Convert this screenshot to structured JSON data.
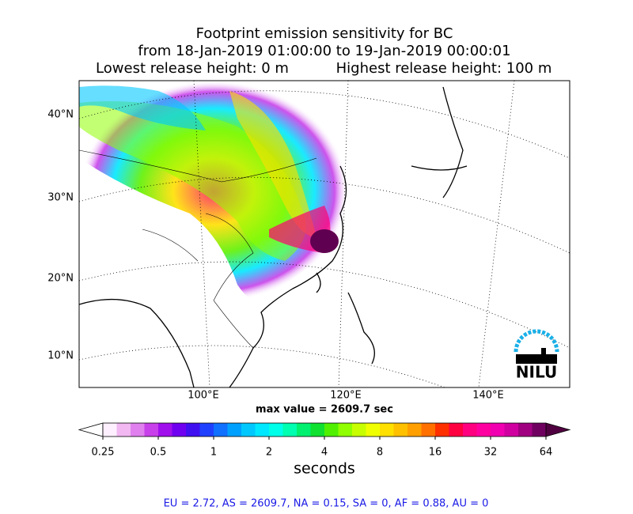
{
  "title": [
    "Footprint emission sensitivity for BC",
    "from 18-Jan-2019 01:00:00 to 19-Jan-2019 00:00:01"
  ],
  "release": {
    "lowest": "Lowest release height: 0 m",
    "highest": "Highest release height: 100 m"
  },
  "map": {
    "lat_labels": [
      "40°N",
      "30°N",
      "20°N",
      "10°N"
    ],
    "lon_labels": [
      "100°E",
      "120°E",
      "140°E"
    ],
    "max_value": "max value = 2609.7 sec",
    "logo": "NILU"
  },
  "colorbar": {
    "ticks": [
      0.25,
      0.5,
      1,
      2,
      4,
      8,
      16,
      32,
      64
    ],
    "log_scale": true,
    "label": "seconds",
    "colors": [
      "#fff0ff",
      "#f2b8f2",
      "#e080ee",
      "#c840ea",
      "#a010ec",
      "#7000f0",
      "#4010f0",
      "#2040ff",
      "#1070ff",
      "#00a0ff",
      "#00c8ff",
      "#00e8ff",
      "#00ffe8",
      "#00ffb0",
      "#00f070",
      "#10e030",
      "#50f000",
      "#90ff00",
      "#c8ff00",
      "#f0ff00",
      "#ffe000",
      "#ffc000",
      "#ffa000",
      "#ff7000",
      "#ff3000",
      "#ff0040",
      "#ff0080",
      "#ff00a0",
      "#f000b0",
      "#d000a0",
      "#a00080",
      "#700060"
    ],
    "under_color": "#ffffff",
    "over_color": "#500040"
  },
  "footer": "EU = 2.72,  AS = 2609.7,  NA = 0.15,  SA = 0,  AF = 0.88,  AU = 0"
}
